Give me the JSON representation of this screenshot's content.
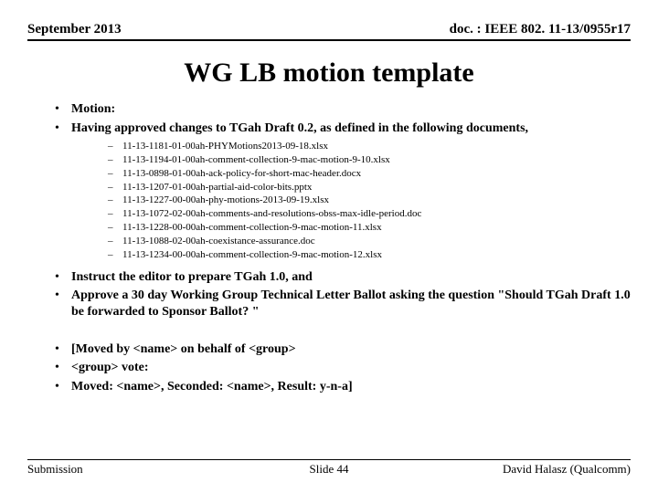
{
  "header": {
    "left": "September 2013",
    "right": "doc. : IEEE 802. 11-13/0955r17"
  },
  "title": "WG LB motion template",
  "bullets_top": [
    "Motion:",
    "Having approved changes to TGah Draft 0.2, as defined in the following documents,"
  ],
  "sub_items": [
    "11-13-1181-01-00ah-PHYMotions2013-09-18.xlsx",
    "11-13-1194-01-00ah-comment-collection-9-mac-motion-9-10.xlsx",
    "11-13-0898-01-00ah-ack-policy-for-short-mac-header.docx",
    "11-13-1207-01-00ah-partial-aid-color-bits.pptx",
    "11-13-1227-00-00ah-phy-motions-2013-09-19.xlsx",
    "11-13-1072-02-00ah-comments-and-resolutions-obss-max-idle-period.doc",
    "11-13-1228-00-00ah-comment-collection-9-mac-motion-11.xlsx",
    "11-13-1088-02-00ah-coexistance-assurance.doc",
    "11-13-1234-00-00ah-comment-collection-9-mac-motion-12.xlsx"
  ],
  "bullets_bottom": [
    "Instruct the editor to prepare TGah 1.0,  and",
    "Approve a 30 day Working Group Technical Letter Ballot asking the question \"Should TGah Draft 1.0 be forwarded to Sponsor Ballot? \"",
    "",
    "[Moved by <name> on behalf of <group>",
    "<group> vote:",
    "Moved: <name>,  Seconded: <name>, Result: y-n-a]"
  ],
  "footer": {
    "left": "Submission",
    "center": "Slide 44",
    "right": "David Halasz (Qualcomm)"
  }
}
